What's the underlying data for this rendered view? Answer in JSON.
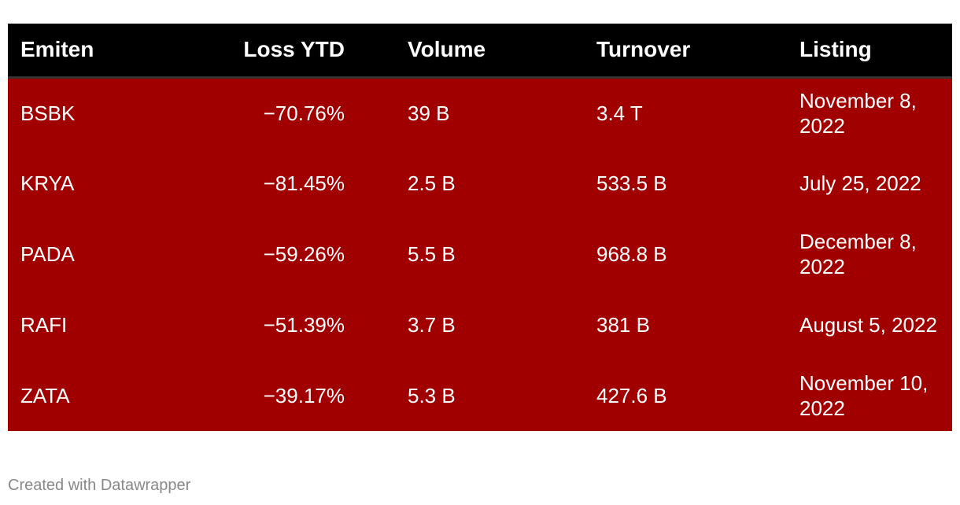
{
  "chart_data": {
    "type": "table",
    "columns": [
      "Emiten",
      "Loss YTD",
      "Volume",
      "Turnover",
      "Listing"
    ],
    "rows": [
      [
        "BSBK",
        "−70.76%",
        "39 B",
        "3.4 T",
        "November 8, 2022"
      ],
      [
        "KRYA",
        "−81.45%",
        "2.5 B",
        "533.5 B",
        "July 25, 2022"
      ],
      [
        "PADA",
        "−59.26%",
        "5.5 B",
        "968.8 B",
        "December 8, 2022"
      ],
      [
        "RAFI",
        "−51.39%",
        "3.7 B",
        "381 B",
        "August 5, 2022"
      ],
      [
        "ZATA",
        "−39.17%",
        "5.3 B",
        "427.6 B",
        "November 10, 2022"
      ]
    ],
    "colors": {
      "header_bg": "#000000",
      "row_bg": "#a00000",
      "text": "#ffffff"
    }
  },
  "footer": {
    "credit": "Created with Datawrapper"
  }
}
